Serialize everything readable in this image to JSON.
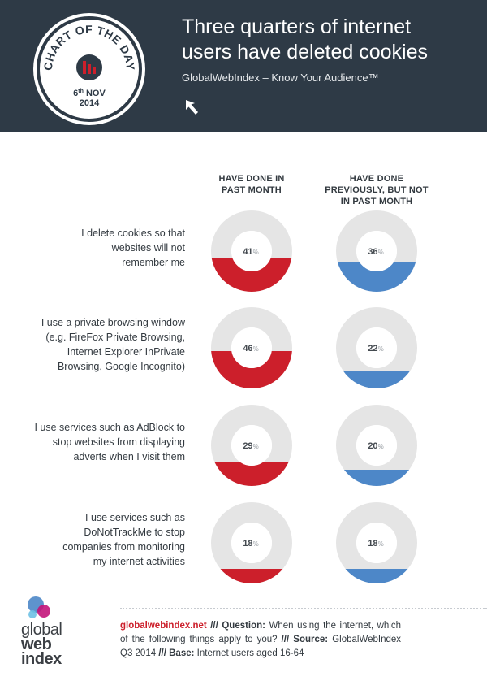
{
  "header": {
    "title_line1": "Three quarters of internet",
    "title_line2": "users have deleted cookies",
    "subtitle": "GlobalWebIndex – Know Your Audience™",
    "badge": {
      "text": "CHART OF THE DAY",
      "date_day": "6",
      "date_suffix": "th",
      "date_month": "NOV",
      "date_year": "2014"
    }
  },
  "colors": {
    "header_bg": "#2e3a46",
    "red": "#cc1f2b",
    "blue": "#4d87c8",
    "track": "#e5e5e5",
    "badge_accent": "#cc1f2b"
  },
  "chart_data": {
    "type": "donut",
    "title": "Three quarters of internet users have deleted cookies",
    "unit": "%",
    "columns": [
      {
        "name_lines": [
          "HAVE DONE IN",
          "PAST MONTH"
        ],
        "color": "#cc1f2b"
      },
      {
        "name_lines": [
          "HAVE DONE",
          "PREVIOUSLY, BUT NOT",
          "IN PAST MONTH"
        ],
        "color": "#4d87c8"
      }
    ],
    "categories": [
      {
        "lines": [
          "I delete cookies so that",
          "websites will not",
          "remember me"
        ],
        "values": [
          41,
          36
        ]
      },
      {
        "lines": [
          "I use a private browsing window",
          "(e.g. FireFox Private Browsing,",
          "Internet Explorer InPrivate",
          "Browsing, Google Incognito)"
        ],
        "values": [
          46,
          22
        ]
      },
      {
        "lines": [
          "I use services such as AdBlock to",
          "stop websites from displaying",
          "adverts when I visit them"
        ],
        "values": [
          29,
          20
        ]
      },
      {
        "lines": [
          "I use services such as",
          "DoNotTrackMe to stop",
          "companies from monitoring",
          "my internet activities"
        ],
        "values": [
          18,
          18
        ]
      }
    ]
  },
  "footer": {
    "logo_lines": [
      "global",
      "web",
      "index"
    ],
    "link": "globalwebindex.net",
    "sep": "///",
    "question_label": "Question:",
    "question": "When using the internet, which of the following things apply to you?",
    "source_label": "Source:",
    "source": "GlobalWebIndex Q3 2014",
    "base_label": "Base:",
    "base": "Internet users aged 16-64"
  }
}
